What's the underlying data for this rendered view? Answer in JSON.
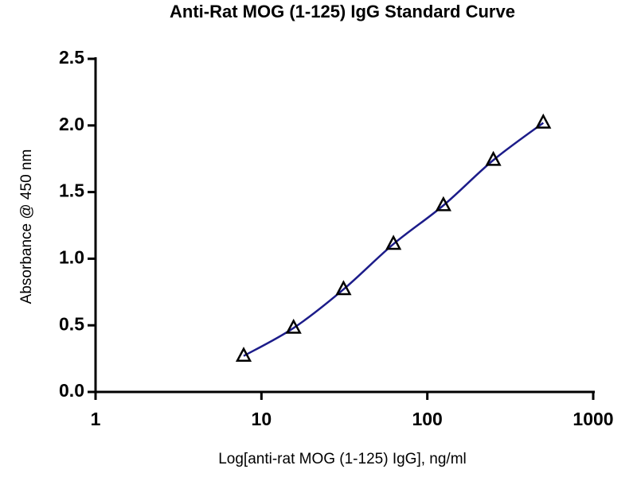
{
  "chart_data": {
    "type": "line",
    "title": "Anti-Rat MOG (1-125) IgG Standard Curve",
    "x_label": "Log[anti-rat MOG (1-125) IgG], ng/ml",
    "y_label": "Absorbance @ 450 nm",
    "x": [
      7.8125,
      15.625,
      31.25,
      62.5,
      125,
      250,
      500
    ],
    "series": [
      {
        "color": "#1c1c8a",
        "values": [
          0.27,
          0.48,
          0.77,
          1.11,
          1.4,
          1.74,
          2.02
        ]
      }
    ],
    "x_log": true,
    "xlim": [
      1,
      1000
    ],
    "xticks": [
      1,
      10,
      100,
      1000
    ],
    "ylim": [
      0,
      2.5
    ],
    "yticks": [
      {
        "value": 0,
        "label": "0.0"
      },
      0.5,
      {
        "value": 1,
        "label": "1.0"
      },
      1.5,
      {
        "value": 2,
        "label": "2.0"
      },
      2.5
    ]
  }
}
